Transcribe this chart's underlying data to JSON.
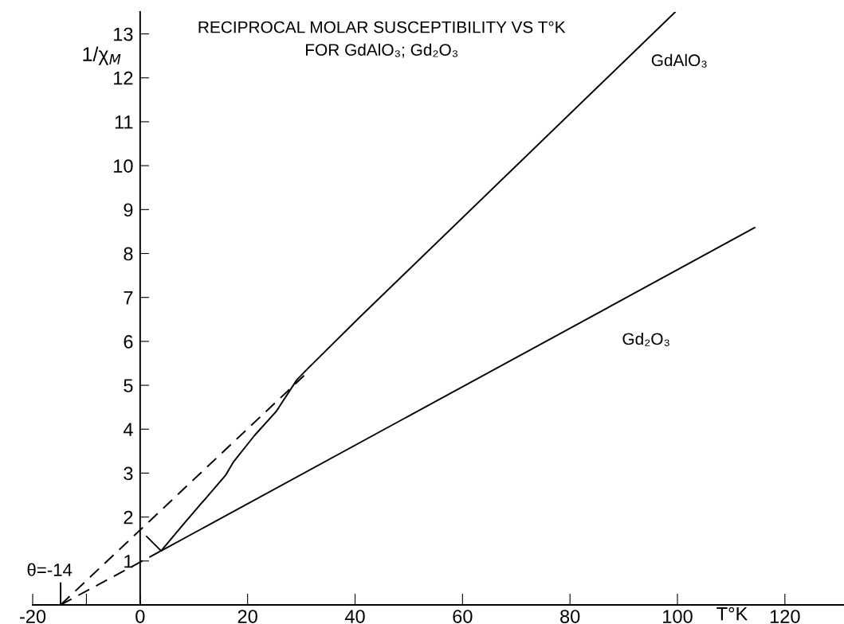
{
  "chart_data": {
    "type": "line",
    "title": "RECIPROCAL MOLAR SUSCEPTIBILITY VS T°K\nFOR GdAlO₃; Gd₂O₃",
    "xlabel": "T°K",
    "ylabel": "1/χ$_{M}$",
    "series": [
      {
        "name": "GdAlO₃",
        "color": "#000000",
        "x": [
          3.9,
          8.5,
          15.9,
          17.4,
          21.3,
          25.3,
          29.2,
          31.2,
          40.6,
          99.6
        ],
        "values": [
          1.23,
          1.9,
          2.95,
          3.26,
          3.86,
          4.4,
          5.13,
          5.38,
          6.52,
          13.5
        ]
      },
      {
        "name": "Gd₂O₃",
        "color": "#000000",
        "x": [
          3.9,
          114.4
        ],
        "values": [
          1.23,
          8.59
        ]
      },
      {
        "color": "#000000",
        "x": [
          1.2,
          3.9
        ],
        "values": [
          1.56,
          1.23
        ]
      },
      {
        "color": "#000000",
        "line_style": "dashed",
        "x": [
          -14.8,
          31.2
        ],
        "values": [
          0,
          5.3
        ]
      },
      {
        "color": "#000000",
        "line_style": "dashed",
        "x": [
          -14.8,
          3.9
        ],
        "values": [
          0,
          1.23
        ]
      },
      {
        "color": "#000000",
        "x": [
          -14.8,
          -14.8
        ],
        "values": [
          0,
          0.5
        ]
      }
    ],
    "annotations": [
      {
        "text": "θ=-14",
        "x": -14.8,
        "y": 0.5
      }
    ],
    "xlim": [
      -20,
      131
    ],
    "ylim": [
      0,
      13.5
    ],
    "xticks": [
      -20,
      {
        "value": -10,
        "label": null
      },
      0,
      20,
      40,
      60,
      80,
      100,
      120
    ],
    "yticks": [
      1,
      2,
      3,
      4,
      5,
      6,
      7,
      8,
      9,
      10,
      11,
      12,
      13
    ],
    "marker": "none",
    "line_style": "solid"
  }
}
